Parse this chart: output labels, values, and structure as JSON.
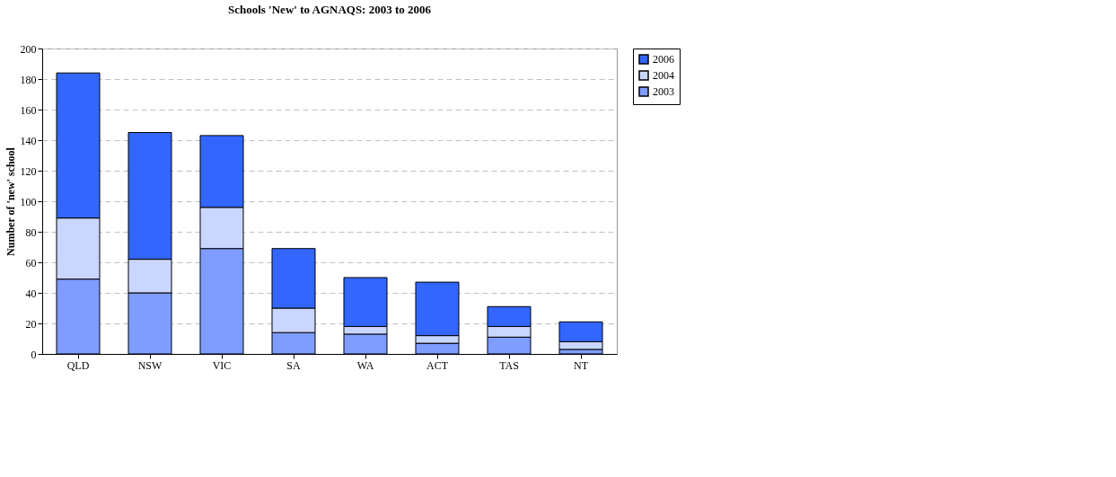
{
  "chart_data": {
    "type": "bar",
    "stacked": true,
    "title": "Schools 'New' to AGNAQS: 2003 to 2006",
    "ylabel": "Number of 'new' school",
    "categories": [
      "QLD",
      "NSW",
      "VIC",
      "SA",
      "WA",
      "ACT",
      "TAS",
      "NT"
    ],
    "series": [
      {
        "name": "2003",
        "color": "#7f9cff",
        "values": [
          49,
          40,
          69,
          14,
          13,
          7,
          11,
          3
        ]
      },
      {
        "name": "2004",
        "color": "#c9d6ff",
        "values": [
          40,
          22,
          27,
          16,
          5,
          5,
          7,
          5
        ]
      },
      {
        "name": "2006",
        "color": "#3366ff",
        "values": [
          95,
          83,
          47,
          39,
          32,
          35,
          13,
          13
        ]
      }
    ],
    "ylim": [
      0,
      200
    ],
    "yticks": [
      0,
      20,
      40,
      60,
      80,
      100,
      120,
      140,
      160,
      180,
      200
    ],
    "grid": "y",
    "legend": "right"
  }
}
